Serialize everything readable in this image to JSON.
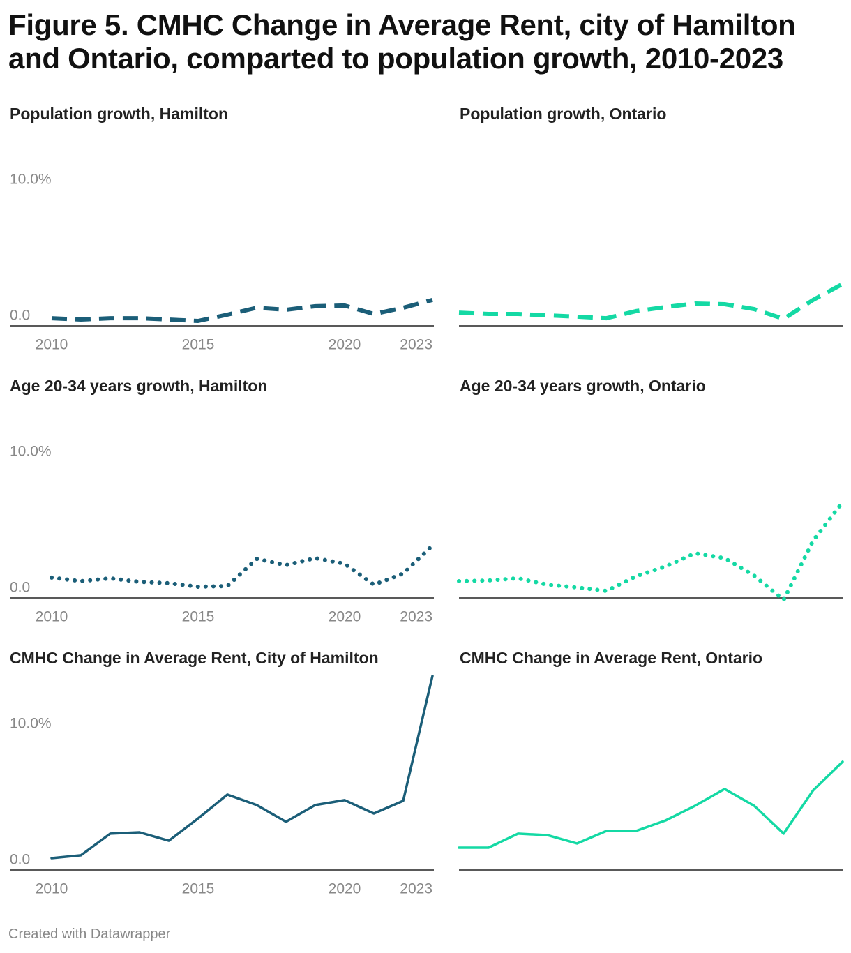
{
  "title": "Figure 5. CMHC Change in Average Rent, city of Hamilton and Ontario, comparted to population growth, 2010-2023",
  "footer": "Created with Datawrapper",
  "chart_data": [
    {
      "type": "line",
      "title": "Population growth, Hamilton",
      "x": [
        2010,
        2011,
        2012,
        2013,
        2014,
        2015,
        2016,
        2017,
        2018,
        2019,
        2020,
        2021,
        2022,
        2023
      ],
      "values": [
        0.56,
        0.46,
        0.56,
        0.56,
        0.46,
        0.36,
        0.82,
        1.33,
        1.18,
        1.44,
        1.49,
        0.87,
        1.33,
        1.9
      ],
      "color": "#1b5e78",
      "line_style": "dashed",
      "xlim": [
        2010,
        2023
      ],
      "xticks": [
        2010,
        2015,
        2020,
        2023
      ],
      "ylim": [
        0,
        14.3
      ],
      "yticks": [
        {
          "value": 0,
          "label": "0.0"
        },
        {
          "value": 10,
          "label": "10.0%"
        }
      ]
    },
    {
      "type": "line",
      "title": "Population growth, Ontario",
      "x": [
        2010,
        2011,
        2012,
        2013,
        2014,
        2015,
        2016,
        2017,
        2018,
        2019,
        2020,
        2021,
        2022,
        2023
      ],
      "values": [
        0.97,
        0.87,
        0.87,
        0.77,
        0.67,
        0.56,
        1.08,
        1.38,
        1.64,
        1.59,
        1.23,
        0.51,
        1.9,
        3.08
      ],
      "color": "#14d9a4",
      "line_style": "dashed",
      "xlim": [
        2010,
        2023
      ],
      "ylim": [
        0,
        14.3
      ]
    },
    {
      "type": "line",
      "title": "Age 20-34 years growth, Hamilton",
      "x": [
        2010,
        2011,
        2012,
        2013,
        2014,
        2015,
        2016,
        2017,
        2018,
        2019,
        2020,
        2021,
        2022,
        2023
      ],
      "values": [
        1.49,
        1.23,
        1.44,
        1.18,
        1.08,
        0.82,
        0.87,
        2.87,
        2.41,
        2.92,
        2.51,
        0.97,
        1.79,
        3.85
      ],
      "color": "#1b5e78",
      "line_style": "dotted",
      "xlim": [
        2010,
        2023
      ],
      "xticks": [
        2010,
        2015,
        2020,
        2023
      ],
      "ylim": [
        0,
        14.3
      ],
      "yticks": [
        {
          "value": 0,
          "label": "0.0"
        },
        {
          "value": 10,
          "label": "10.0%"
        }
      ]
    },
    {
      "type": "line",
      "title": "Age 20-34 years growth, Ontario",
      "x": [
        2010,
        2011,
        2012,
        2013,
        2014,
        2015,
        2016,
        2017,
        2018,
        2019,
        2020,
        2021,
        2022,
        2023
      ],
      "values": [
        1.23,
        1.28,
        1.44,
        0.97,
        0.77,
        0.51,
        1.59,
        2.31,
        3.28,
        2.92,
        1.64,
        -0.15,
        4.21,
        7.03
      ],
      "color": "#14d9a4",
      "line_style": "dotted",
      "xlim": [
        2010,
        2023
      ],
      "ylim": [
        0,
        14.3
      ]
    },
    {
      "type": "line",
      "title": "CMHC Change in Average Rent, City of Hamilton",
      "x": [
        2010,
        2011,
        2012,
        2013,
        2014,
        2015,
        2016,
        2017,
        2018,
        2019,
        2020,
        2021,
        2022,
        2023
      ],
      "values": [
        0.87,
        1.08,
        2.67,
        2.77,
        2.15,
        3.79,
        5.54,
        4.77,
        3.54,
        4.77,
        5.13,
        4.15,
        5.08,
        14.26
      ],
      "color": "#1b5e78",
      "line_style": "solid",
      "xlim": [
        2010,
        2023
      ],
      "xticks": [
        2010,
        2015,
        2020,
        2023
      ],
      "ylim": [
        0,
        14.3
      ],
      "yticks": [
        {
          "value": 0,
          "label": "0.0"
        },
        {
          "value": 10,
          "label": "10.0%"
        }
      ]
    },
    {
      "type": "line",
      "title": "CMHC Change in Average Rent, Ontario",
      "x": [
        2010,
        2011,
        2012,
        2013,
        2014,
        2015,
        2016,
        2017,
        2018,
        2019,
        2020,
        2021,
        2022,
        2023
      ],
      "values": [
        1.64,
        1.64,
        2.67,
        2.56,
        1.95,
        2.87,
        2.87,
        3.64,
        4.72,
        5.95,
        4.72,
        2.67,
        5.85,
        7.95
      ],
      "color": "#14d9a4",
      "line_style": "solid",
      "xlim": [
        2010,
        2023
      ],
      "ylim": [
        0,
        14.3
      ]
    }
  ]
}
